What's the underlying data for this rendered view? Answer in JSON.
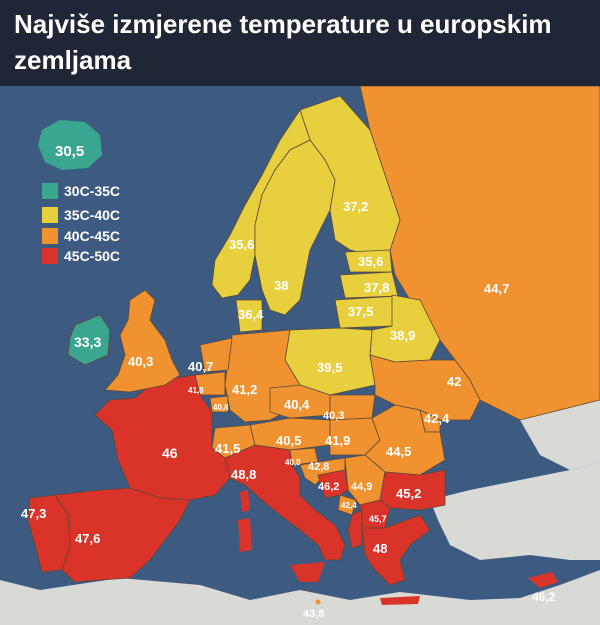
{
  "title": "Najviše izmjerene temperature u europskim zemljama",
  "colors": {
    "sea": "#3d5a80",
    "land_other": "#d9d9d6",
    "header_bg": "#1f2636",
    "range_30_35": "#3aa68f",
    "range_35_40": "#e8cf3e",
    "range_40_45": "#f0922f",
    "range_45_50": "#d9332a",
    "border": "#5b4a3a"
  },
  "legend": [
    {
      "label": "30C-35C",
      "color": "#3aa68f"
    },
    {
      "label": "35C-40C",
      "color": "#e8cf3e"
    },
    {
      "label": "40C-45C",
      "color": "#f0922f"
    },
    {
      "label": "45C-50C",
      "color": "#d9332a"
    }
  ],
  "temperatures": {
    "iceland": "30,5",
    "ireland": "33,3",
    "uk": "40,3",
    "norway": "35,6",
    "sweden": "38",
    "finland": "37,2",
    "estonia": "35,6",
    "latvia": "37,8",
    "lithuania": "37,5",
    "belarus": "38,9",
    "russia": "44,7",
    "denmark": "36,4",
    "netherlands": "40,7",
    "belgium": "41,8",
    "luxembourg": "40,8",
    "germany": "41,2",
    "poland": "39,5",
    "ukraine": "42",
    "moldova": "42,4",
    "czechia": "40,4",
    "slovakia": "40,3",
    "austria": "40,5",
    "hungary": "41,9",
    "romania": "44,5",
    "switzerland": "41,5",
    "france": "46",
    "slovenia": "40,8",
    "croatia": "42,8",
    "bosnia": "46,2",
    "serbia": "44,9",
    "montenegro": "42,4",
    "bulgaria": "45,2",
    "macedonia": "45,7",
    "italy": "48,8",
    "greece": "48",
    "portugal": "47,3",
    "spain": "47,6",
    "malta": "43,8",
    "cyprus": "46,2"
  }
}
